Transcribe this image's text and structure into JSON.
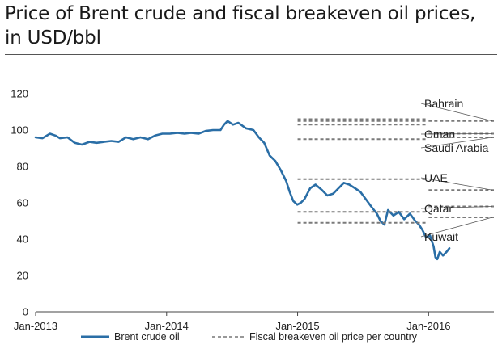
{
  "chart_data": {
    "type": "line",
    "title": "Price of Brent crude and fiscal breakeven oil prices, in USD/bbl",
    "title_lines": [
      "Price of Brent crude and fiscal breakeven oil prices,",
      "in USD/bbl"
    ],
    "ylim": [
      0,
      120
    ],
    "yticks": [
      0,
      20,
      40,
      60,
      80,
      100,
      120
    ],
    "xlim": [
      "2013-01-01",
      "2016-07-01"
    ],
    "xticks": [
      {
        "label": "Jan-2013",
        "date": "2013-01-01"
      },
      {
        "label": "Jan-2014",
        "date": "2014-01-01"
      },
      {
        "label": "Jan-2015",
        "date": "2015-01-01"
      },
      {
        "label": "Jan-2016",
        "date": "2016-01-01"
      }
    ],
    "grid": false,
    "legend_position": "bottom",
    "legend": [
      {
        "label": "Brent crude oil",
        "style": "solid",
        "color": "#2a6ea6"
      },
      {
        "label": "Fiscal breakeven oil price per country",
        "style": "dashed",
        "color": "#777777"
      }
    ],
    "series": [
      {
        "name": "Brent crude oil",
        "color": "#2a6ea6",
        "points": [
          [
            "2013-01-01",
            96
          ],
          [
            "2013-01-20",
            95.5
          ],
          [
            "2013-02-10",
            98
          ],
          [
            "2013-02-25",
            97
          ],
          [
            "2013-03-10",
            95.5
          ],
          [
            "2013-03-31",
            96
          ],
          [
            "2013-04-20",
            93
          ],
          [
            "2013-05-10",
            92
          ],
          [
            "2013-05-31",
            93.5
          ],
          [
            "2013-06-20",
            93
          ],
          [
            "2013-07-10",
            93.5
          ],
          [
            "2013-07-31",
            94
          ],
          [
            "2013-08-20",
            93.5
          ],
          [
            "2013-09-10",
            96
          ],
          [
            "2013-09-30",
            95
          ],
          [
            "2013-10-20",
            96
          ],
          [
            "2013-11-10",
            95
          ],
          [
            "2013-11-30",
            97
          ],
          [
            "2013-12-20",
            98
          ],
          [
            "2014-01-10",
            98
          ],
          [
            "2014-01-31",
            98.5
          ],
          [
            "2014-02-20",
            98
          ],
          [
            "2014-03-10",
            98.5
          ],
          [
            "2014-03-31",
            98
          ],
          [
            "2014-04-20",
            99.5
          ],
          [
            "2014-05-10",
            100
          ],
          [
            "2014-05-31",
            100
          ],
          [
            "2014-06-10",
            103
          ],
          [
            "2014-06-20",
            105
          ],
          [
            "2014-07-05",
            103
          ],
          [
            "2014-07-20",
            104
          ],
          [
            "2014-08-10",
            101
          ],
          [
            "2014-08-31",
            100
          ],
          [
            "2014-09-15",
            96
          ],
          [
            "2014-09-30",
            93
          ],
          [
            "2014-10-15",
            86
          ],
          [
            "2014-10-31",
            83
          ],
          [
            "2014-11-15",
            78
          ],
          [
            "2014-11-30",
            72
          ],
          [
            "2014-12-10",
            66
          ],
          [
            "2014-12-20",
            61
          ],
          [
            "2014-12-31",
            59
          ],
          [
            "2015-01-10",
            60
          ],
          [
            "2015-01-20",
            62
          ],
          [
            "2015-02-05",
            68
          ],
          [
            "2015-02-20",
            70
          ],
          [
            "2015-03-10",
            67
          ],
          [
            "2015-03-25",
            64
          ],
          [
            "2015-04-10",
            65
          ],
          [
            "2015-04-25",
            68
          ],
          [
            "2015-05-10",
            71
          ],
          [
            "2015-05-25",
            70
          ],
          [
            "2015-06-10",
            68
          ],
          [
            "2015-06-25",
            66
          ],
          [
            "2015-07-10",
            62
          ],
          [
            "2015-07-25",
            58
          ],
          [
            "2015-08-10",
            54
          ],
          [
            "2015-08-20",
            50
          ],
          [
            "2015-08-31",
            48
          ],
          [
            "2015-09-10",
            56
          ],
          [
            "2015-09-25",
            53
          ],
          [
            "2015-10-10",
            55
          ],
          [
            "2015-10-25",
            51
          ],
          [
            "2015-11-10",
            54
          ],
          [
            "2015-11-25",
            50
          ],
          [
            "2015-12-05",
            48
          ],
          [
            "2015-12-15",
            45
          ],
          [
            "2015-12-25",
            41
          ],
          [
            "2016-01-05",
            42
          ],
          [
            "2016-01-15",
            36
          ],
          [
            "2016-01-20",
            30
          ],
          [
            "2016-01-25",
            29
          ],
          [
            "2016-02-01",
            33
          ],
          [
            "2016-02-10",
            31
          ],
          [
            "2016-02-20",
            33
          ],
          [
            "2016-02-28",
            35
          ]
        ]
      }
    ],
    "breakeven": [
      {
        "name": "Bahrain",
        "segments": [
          {
            "x0": "2015-01-01",
            "x1": "2015-12-31",
            "values": [
              105,
              106
            ]
          },
          {
            "x0": "2016-01-01",
            "x1": "2016-07-01",
            "values": [
              105
            ]
          }
        ]
      },
      {
        "name": "Oman",
        "segments": [
          {
            "x0": "2015-01-01",
            "x1": "2015-12-31",
            "values": [
              95
            ]
          },
          {
            "x0": "2016-01-01",
            "x1": "2016-07-01",
            "values": [
              98
            ]
          }
        ]
      },
      {
        "name": "Saudi Arabia",
        "segments": [
          {
            "x0": "2015-01-01",
            "x1": "2015-12-31",
            "values": [
              103
            ]
          },
          {
            "x0": "2016-01-01",
            "x1": "2016-07-01",
            "values": [
              96
            ]
          }
        ]
      },
      {
        "name": "UAE",
        "segments": [
          {
            "x0": "2015-01-01",
            "x1": "2015-12-31",
            "values": [
              73
            ]
          },
          {
            "x0": "2016-01-01",
            "x1": "2016-07-01",
            "values": [
              67
            ]
          }
        ]
      },
      {
        "name": "Qatar",
        "segments": [
          {
            "x0": "2015-01-01",
            "x1": "2015-12-31",
            "values": [
              55
            ]
          },
          {
            "x0": "2016-01-01",
            "x1": "2016-07-01",
            "values": [
              58
            ]
          }
        ]
      },
      {
        "name": "Kuwait",
        "segments": [
          {
            "x0": "2015-01-01",
            "x1": "2015-12-31",
            "values": [
              49
            ]
          },
          {
            "x0": "2016-01-01",
            "x1": "2016-07-01",
            "values": [
              52
            ]
          }
        ]
      }
    ]
  }
}
